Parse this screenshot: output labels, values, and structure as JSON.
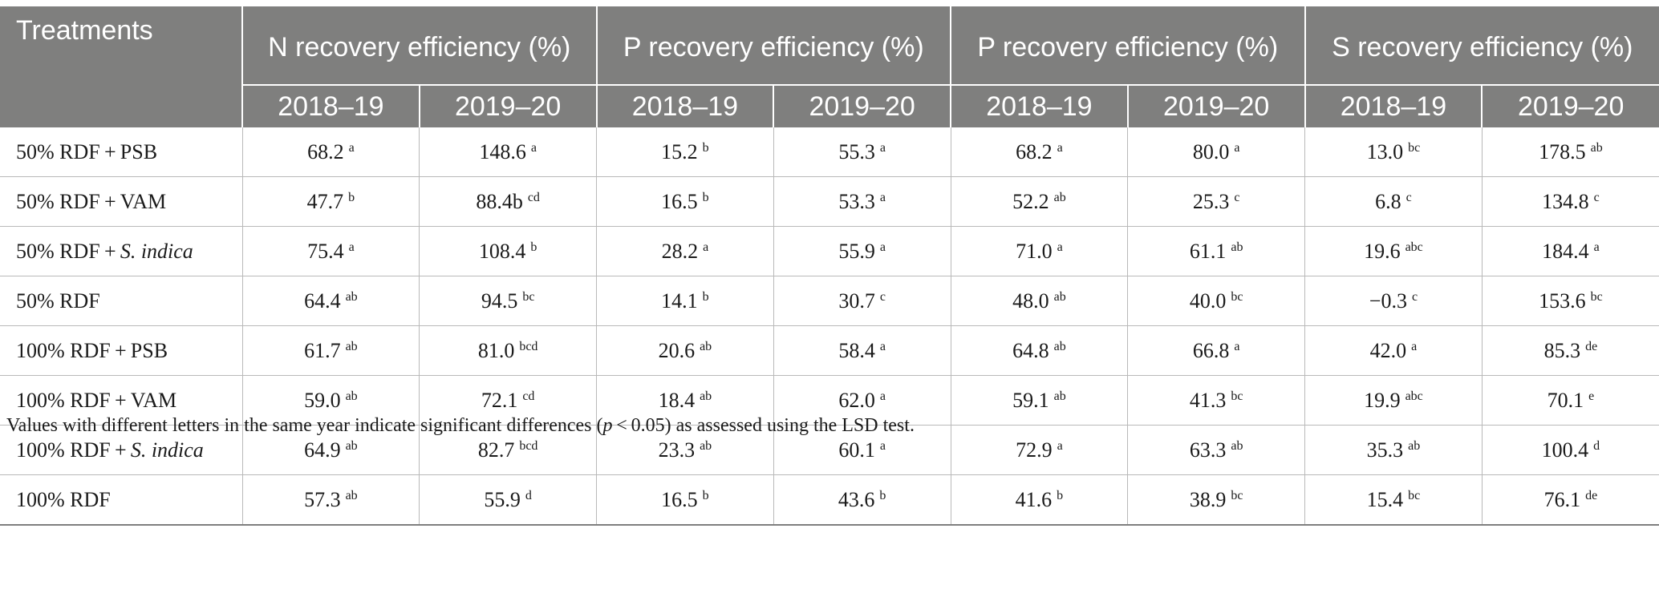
{
  "header": {
    "treatments": "Treatments",
    "groups": [
      "N recovery efficiency (%)",
      "P recovery efficiency (%)",
      "P recovery efficiency (%)",
      "S recovery efficiency (%)"
    ],
    "years": [
      "2018–19",
      "2019–20",
      "2018–19",
      "2019–20",
      "2018–19",
      "2019–20",
      "2018–19",
      "2019–20"
    ]
  },
  "rows": [
    {
      "treatment": "50% RDF + PSB",
      "italic": "",
      "cells": [
        {
          "v": "68.2",
          "s": "a"
        },
        {
          "v": "148.6",
          "s": "a"
        },
        {
          "v": "15.2",
          "s": "b"
        },
        {
          "v": "55.3",
          "s": "a"
        },
        {
          "v": "68.2",
          "s": "a"
        },
        {
          "v": "80.0",
          "s": "a"
        },
        {
          "v": "13.0",
          "s": "bc"
        },
        {
          "v": "178.5",
          "s": "ab"
        }
      ]
    },
    {
      "treatment": "50% RDF + VAM",
      "italic": "",
      "cells": [
        {
          "v": "47.7",
          "s": "b"
        },
        {
          "v": "88.4b",
          "s": "cd"
        },
        {
          "v": "16.5",
          "s": "b"
        },
        {
          "v": "53.3",
          "s": "a"
        },
        {
          "v": "52.2",
          "s": "ab"
        },
        {
          "v": "25.3",
          "s": "c"
        },
        {
          "v": "6.8",
          "s": "c"
        },
        {
          "v": "134.8",
          "s": "c"
        }
      ]
    },
    {
      "treatment": "50% RDF + ",
      "italic": "S. indica",
      "cells": [
        {
          "v": "75.4",
          "s": "a"
        },
        {
          "v": "108.4",
          "s": "b"
        },
        {
          "v": "28.2",
          "s": "a"
        },
        {
          "v": "55.9",
          "s": "a"
        },
        {
          "v": "71.0",
          "s": "a"
        },
        {
          "v": "61.1",
          "s": "ab"
        },
        {
          "v": "19.6",
          "s": "abc"
        },
        {
          "v": "184.4",
          "s": "a"
        }
      ]
    },
    {
      "treatment": "50% RDF",
      "italic": "",
      "cells": [
        {
          "v": "64.4",
          "s": "ab"
        },
        {
          "v": "94.5",
          "s": "bc"
        },
        {
          "v": "14.1",
          "s": "b"
        },
        {
          "v": "30.7",
          "s": "c"
        },
        {
          "v": "48.0",
          "s": "ab"
        },
        {
          "v": "40.0",
          "s": "bc"
        },
        {
          "v": "−0.3",
          "s": "c"
        },
        {
          "v": "153.6",
          "s": "bc"
        }
      ]
    },
    {
      "treatment": "100% RDF + PSB",
      "italic": "",
      "cells": [
        {
          "v": "61.7",
          "s": "ab"
        },
        {
          "v": "81.0",
          "s": "bcd"
        },
        {
          "v": "20.6",
          "s": "ab"
        },
        {
          "v": "58.4",
          "s": "a"
        },
        {
          "v": "64.8",
          "s": "ab"
        },
        {
          "v": "66.8",
          "s": "a"
        },
        {
          "v": "42.0",
          "s": "a"
        },
        {
          "v": "85.3",
          "s": "de"
        }
      ]
    },
    {
      "treatment": "100% RDF + VAM",
      "italic": "",
      "cells": [
        {
          "v": "59.0",
          "s": "ab"
        },
        {
          "v": "72.1",
          "s": "cd"
        },
        {
          "v": "18.4",
          "s": "ab"
        },
        {
          "v": "62.0",
          "s": "a"
        },
        {
          "v": "59.1",
          "s": "ab"
        },
        {
          "v": "41.3",
          "s": "bc"
        },
        {
          "v": "19.9",
          "s": "abc"
        },
        {
          "v": "70.1",
          "s": "e"
        }
      ]
    },
    {
      "treatment": "100% RDF + ",
      "italic": "S. indica",
      "cells": [
        {
          "v": "64.9",
          "s": "ab"
        },
        {
          "v": "82.7",
          "s": "bcd"
        },
        {
          "v": "23.3",
          "s": "ab"
        },
        {
          "v": "60.1",
          "s": "a"
        },
        {
          "v": "72.9",
          "s": "a"
        },
        {
          "v": "63.3",
          "s": "ab"
        },
        {
          "v": "35.3",
          "s": "ab"
        },
        {
          "v": "100.4",
          "s": "d"
        }
      ]
    },
    {
      "treatment": "100% RDF",
      "italic": "",
      "cells": [
        {
          "v": "57.3",
          "s": "ab"
        },
        {
          "v": "55.9",
          "s": "d"
        },
        {
          "v": "16.5",
          "s": "b"
        },
        {
          "v": "43.6",
          "s": "b"
        },
        {
          "v": "41.6",
          "s": "b"
        },
        {
          "v": "38.9",
          "s": "bc"
        },
        {
          "v": "15.4",
          "s": "bc"
        },
        {
          "v": "76.1",
          "s": "de"
        }
      ]
    }
  ],
  "note": {
    "before": "Values with different letters in the same year indicate significant differences (",
    "italic": "p",
    "after": " < 0.05) as assessed using the LSD test."
  }
}
